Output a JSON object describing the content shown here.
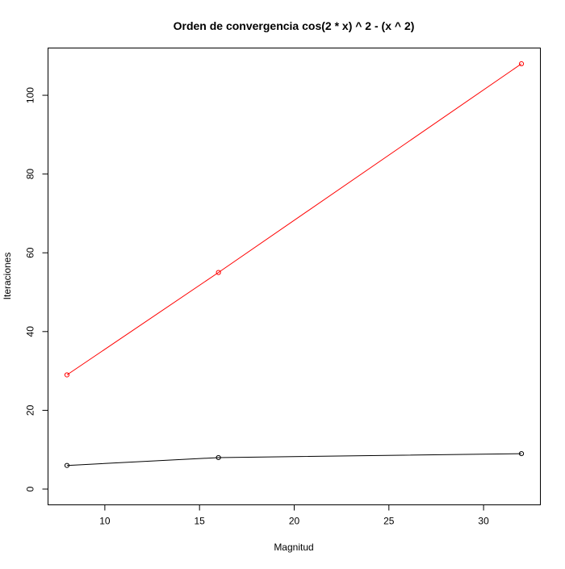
{
  "chart_data": {
    "type": "line",
    "title": "Orden de convergencia cos(2 * x) ^ 2 - (x ^ 2)",
    "xlabel": "Magnitud",
    "ylabel": "Iteraciones",
    "x": [
      8,
      16,
      32
    ],
    "xlim": [
      7,
      33
    ],
    "ylim": [
      -4,
      112
    ],
    "x_ticks": [
      10,
      15,
      20,
      25,
      30
    ],
    "y_ticks": [
      0,
      20,
      40,
      60,
      80,
      100
    ],
    "grid": false,
    "series": [
      {
        "values": [
          29,
          55,
          108
        ],
        "color": "#ff0000",
        "marker": "open-circle"
      },
      {
        "values": [
          6,
          8,
          9
        ],
        "color": "#000000",
        "marker": "open-circle"
      }
    ]
  }
}
